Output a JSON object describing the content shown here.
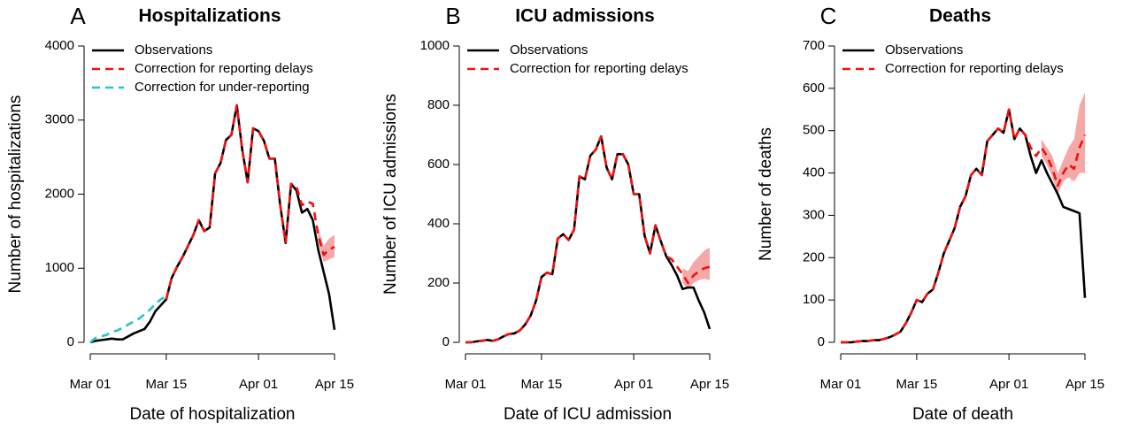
{
  "chart_data": [
    {
      "type": "line",
      "panel_label": "A",
      "title": "Hospitalizations",
      "x_label": "Date of hospitalization",
      "y_label": "Number of hospitalizations",
      "legend": "top-left",
      "x": [
        "03-01",
        "03-02",
        "03-03",
        "03-04",
        "03-05",
        "03-06",
        "03-07",
        "03-08",
        "03-09",
        "03-10",
        "03-11",
        "03-12",
        "03-13",
        "03-14",
        "03-15",
        "03-16",
        "03-17",
        "03-18",
        "03-19",
        "03-20",
        "03-21",
        "03-22",
        "03-23",
        "03-24",
        "03-25",
        "03-26",
        "03-27",
        "03-28",
        "03-29",
        "03-30",
        "03-31",
        "04-01",
        "04-02",
        "04-03",
        "04-04",
        "04-05",
        "04-06",
        "04-07",
        "04-08",
        "04-09",
        "04-10",
        "04-11",
        "04-12",
        "04-13",
        "04-14",
        "04-15"
      ],
      "xlim": [
        "03-01",
        "04-15"
      ],
      "xticks": [
        {
          "value": "03-01",
          "label": "Mar 01"
        },
        {
          "value": "03-15",
          "label": "Mar 15"
        },
        {
          "value": "04-01",
          "label": "Apr 01"
        },
        {
          "value": "04-15",
          "label": "Apr 15"
        }
      ],
      "ylim": [
        0,
        4000
      ],
      "yticks": [
        0,
        1000,
        2000,
        3000,
        4000
      ],
      "series": [
        {
          "name": "Observations",
          "color": "#000000",
          "dashed": false,
          "values": [
            0,
            20,
            30,
            40,
            50,
            40,
            40,
            80,
            120,
            150,
            180,
            280,
            420,
            500,
            580,
            870,
            1020,
            1150,
            1300,
            1450,
            1650,
            1500,
            1550,
            2280,
            2420,
            2730,
            2800,
            3200,
            2600,
            2160,
            2890,
            2850,
            2720,
            2480,
            2480,
            1850,
            1340,
            2140,
            2050,
            1750,
            1800,
            1650,
            1250,
            950,
            650,
            170
          ]
        },
        {
          "name": "Correction for reporting delays",
          "color": "#ee1111",
          "dashed": true,
          "band_color": "#f5a8a8",
          "values": [
            null,
            null,
            null,
            null,
            null,
            null,
            null,
            null,
            null,
            null,
            null,
            null,
            null,
            null,
            580,
            870,
            1020,
            1150,
            1300,
            1450,
            1650,
            1500,
            1550,
            2280,
            2420,
            2730,
            2800,
            3200,
            2600,
            2160,
            2890,
            2850,
            2720,
            2480,
            2480,
            1850,
            1340,
            2140,
            2100,
            1850,
            1900,
            1870,
            1450,
            1180,
            1250,
            1290
          ],
          "lower": [
            null,
            null,
            null,
            null,
            null,
            null,
            null,
            null,
            null,
            null,
            null,
            null,
            null,
            null,
            null,
            null,
            null,
            null,
            null,
            null,
            null,
            null,
            null,
            null,
            null,
            null,
            null,
            null,
            null,
            null,
            null,
            null,
            null,
            null,
            null,
            null,
            null,
            null,
            null,
            null,
            null,
            null,
            1350,
            1080,
            1120,
            1150
          ],
          "upper": [
            null,
            null,
            null,
            null,
            null,
            null,
            null,
            null,
            null,
            null,
            null,
            null,
            null,
            null,
            null,
            null,
            null,
            null,
            null,
            null,
            null,
            null,
            null,
            null,
            null,
            null,
            null,
            null,
            null,
            null,
            null,
            null,
            null,
            null,
            null,
            null,
            null,
            null,
            null,
            null,
            null,
            null,
            1550,
            1300,
            1400,
            1450
          ]
        },
        {
          "name": "Correction for under-reporting",
          "color": "#22c4c8",
          "dashed": true,
          "values": [
            0,
            60,
            80,
            100,
            140,
            160,
            200,
            240,
            280,
            320,
            380,
            440,
            520,
            580,
            620,
            null,
            null,
            null,
            null,
            null,
            null,
            null,
            null,
            null,
            null,
            null,
            null,
            null,
            null,
            null,
            null,
            null,
            null,
            null,
            null,
            null,
            null,
            null,
            null,
            null,
            null,
            null,
            null,
            null,
            null,
            null
          ]
        }
      ]
    },
    {
      "type": "line",
      "panel_label": "B",
      "title": "ICU admissions",
      "x_label": "Date of ICU admission",
      "y_label": "Number of ICU admissions",
      "legend": "top-left",
      "x": [
        "03-01",
        "03-02",
        "03-03",
        "03-04",
        "03-05",
        "03-06",
        "03-07",
        "03-08",
        "03-09",
        "03-10",
        "03-11",
        "03-12",
        "03-13",
        "03-14",
        "03-15",
        "03-16",
        "03-17",
        "03-18",
        "03-19",
        "03-20",
        "03-21",
        "03-22",
        "03-23",
        "03-24",
        "03-25",
        "03-26",
        "03-27",
        "03-28",
        "03-29",
        "03-30",
        "03-31",
        "04-01",
        "04-02",
        "04-03",
        "04-04",
        "04-05",
        "04-06",
        "04-07",
        "04-08",
        "04-09",
        "04-10",
        "04-11",
        "04-12",
        "04-13",
        "04-14",
        "04-15"
      ],
      "xlim": [
        "03-01",
        "04-15"
      ],
      "xticks": [
        {
          "value": "03-01",
          "label": "Mar 01"
        },
        {
          "value": "03-15",
          "label": "Mar 15"
        },
        {
          "value": "04-01",
          "label": "Apr 01"
        },
        {
          "value": "04-15",
          "label": "Apr 15"
        }
      ],
      "ylim": [
        0,
        1000
      ],
      "yticks": [
        0,
        200,
        400,
        600,
        800,
        1000
      ],
      "series": [
        {
          "name": "Observations",
          "color": "#000000",
          "dashed": false,
          "values": [
            0,
            0,
            3,
            5,
            8,
            5,
            10,
            20,
            28,
            30,
            40,
            60,
            90,
            140,
            220,
            235,
            230,
            350,
            365,
            345,
            380,
            560,
            550,
            630,
            650,
            695,
            590,
            550,
            635,
            635,
            600,
            500,
            500,
            360,
            300,
            395,
            340,
            290,
            260,
            225,
            180,
            185,
            185,
            140,
            100,
            45
          ]
        },
        {
          "name": "Correction for reporting delays",
          "color": "#ee1111",
          "dashed": true,
          "band_color": "#f5a8a8",
          "values": [
            0,
            0,
            3,
            5,
            8,
            5,
            10,
            20,
            28,
            30,
            40,
            60,
            90,
            140,
            220,
            235,
            230,
            350,
            365,
            345,
            380,
            560,
            550,
            630,
            650,
            695,
            590,
            550,
            635,
            635,
            600,
            500,
            500,
            360,
            300,
            395,
            340,
            290,
            280,
            255,
            230,
            200,
            225,
            240,
            250,
            255
          ],
          "lower": [
            null,
            null,
            null,
            null,
            null,
            null,
            null,
            null,
            null,
            null,
            null,
            null,
            null,
            null,
            null,
            null,
            null,
            null,
            null,
            null,
            null,
            null,
            null,
            null,
            null,
            null,
            null,
            null,
            null,
            null,
            null,
            null,
            null,
            null,
            null,
            null,
            null,
            null,
            null,
            null,
            200,
            180,
            200,
            210,
            215,
            210
          ],
          "upper": [
            null,
            null,
            null,
            null,
            null,
            null,
            null,
            null,
            null,
            null,
            null,
            null,
            null,
            null,
            null,
            null,
            null,
            null,
            null,
            null,
            null,
            null,
            null,
            null,
            null,
            null,
            null,
            null,
            null,
            null,
            null,
            null,
            null,
            null,
            null,
            null,
            null,
            null,
            null,
            null,
            250,
            240,
            270,
            290,
            310,
            320
          ]
        }
      ]
    },
    {
      "type": "line",
      "panel_label": "C",
      "title": "Deaths",
      "x_label": "Date of death",
      "y_label": "Number of deaths",
      "legend": "top-left",
      "x": [
        "03-01",
        "03-02",
        "03-03",
        "03-04",
        "03-05",
        "03-06",
        "03-07",
        "03-08",
        "03-09",
        "03-10",
        "03-11",
        "03-12",
        "03-13",
        "03-14",
        "03-15",
        "03-16",
        "03-17",
        "03-18",
        "03-19",
        "03-20",
        "03-21",
        "03-22",
        "03-23",
        "03-24",
        "03-25",
        "03-26",
        "03-27",
        "03-28",
        "03-29",
        "03-30",
        "03-31",
        "04-01",
        "04-02",
        "04-03",
        "04-04",
        "04-05",
        "04-06",
        "04-07",
        "04-08",
        "04-09",
        "04-10",
        "04-11",
        "04-12",
        "04-13",
        "04-14",
        "04-15"
      ],
      "xlim": [
        "03-01",
        "04-15"
      ],
      "xticks": [
        {
          "value": "03-01",
          "label": "Mar 01"
        },
        {
          "value": "03-15",
          "label": "Mar 15"
        },
        {
          "value": "04-01",
          "label": "Apr 01"
        },
        {
          "value": "04-15",
          "label": "Apr 15"
        }
      ],
      "ylim": [
        0,
        700
      ],
      "yticks": [
        0,
        100,
        200,
        300,
        400,
        500,
        600,
        700
      ],
      "series": [
        {
          "name": "Observations",
          "color": "#000000",
          "dashed": false,
          "values": [
            0,
            0,
            0,
            2,
            3,
            3,
            5,
            5,
            8,
            12,
            18,
            25,
            45,
            70,
            100,
            95,
            115,
            125,
            165,
            210,
            240,
            270,
            320,
            345,
            395,
            410,
            395,
            475,
            490,
            505,
            495,
            550,
            480,
            505,
            490,
            440,
            400,
            430,
            400,
            375,
            350,
            320,
            315,
            310,
            305,
            105
          ]
        },
        {
          "name": "Correction for reporting delays",
          "color": "#ee1111",
          "dashed": true,
          "band_color": "#f5a8a8",
          "values": [
            0,
            0,
            0,
            2,
            3,
            3,
            5,
            5,
            8,
            12,
            18,
            25,
            45,
            70,
            100,
            95,
            115,
            125,
            165,
            210,
            240,
            270,
            320,
            345,
            395,
            410,
            395,
            475,
            490,
            505,
            495,
            550,
            480,
            505,
            490,
            460,
            440,
            460,
            440,
            410,
            370,
            400,
            420,
            410,
            460,
            490
          ],
          "lower": [
            null,
            null,
            null,
            null,
            null,
            null,
            null,
            null,
            null,
            null,
            null,
            null,
            null,
            null,
            null,
            null,
            null,
            null,
            null,
            null,
            null,
            null,
            null,
            null,
            null,
            null,
            null,
            null,
            null,
            null,
            null,
            null,
            null,
            null,
            null,
            null,
            null,
            440,
            420,
            390,
            350,
            380,
            390,
            380,
            400,
            400
          ],
          "upper": [
            null,
            null,
            null,
            null,
            null,
            null,
            null,
            null,
            null,
            null,
            null,
            null,
            null,
            null,
            null,
            null,
            null,
            null,
            null,
            null,
            null,
            null,
            null,
            null,
            null,
            null,
            null,
            null,
            null,
            null,
            null,
            null,
            null,
            null,
            null,
            null,
            null,
            480,
            460,
            440,
            400,
            430,
            460,
            480,
            560,
            590
          ]
        }
      ]
    }
  ]
}
